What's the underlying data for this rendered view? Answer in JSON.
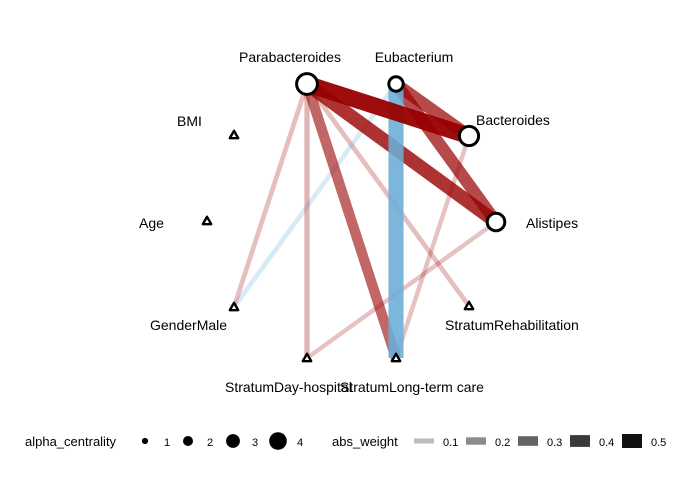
{
  "nodes": [
    {
      "id": "parabacteroides",
      "label": "Parabacteroides",
      "shape": "circle",
      "alpha_centrality": 4
    },
    {
      "id": "eubacterium",
      "label": "Eubacterium",
      "shape": "circle",
      "alpha_centrality": 2
    },
    {
      "id": "bacteroides",
      "label": "Bacteroides",
      "shape": "circle",
      "alpha_centrality": 3.5
    },
    {
      "id": "alistipes",
      "label": "Alistipes",
      "shape": "circle",
      "alpha_centrality": 3
    },
    {
      "id": "bmi",
      "label": "BMI",
      "shape": "triangle"
    },
    {
      "id": "age",
      "label": "Age",
      "shape": "triangle"
    },
    {
      "id": "gendermale",
      "label": "GenderMale",
      "shape": "triangle"
    },
    {
      "id": "stratumdayhospital",
      "label": "StratumDay-hospital",
      "shape": "triangle"
    },
    {
      "id": "stratumlongtermcare",
      "label": "StratumLong-term care",
      "shape": "triangle"
    },
    {
      "id": "stratumrehabilitation",
      "label": "StratumRehabilitation",
      "shape": "triangle"
    }
  ],
  "edges": [
    {
      "from": "parabacteroides",
      "to": "bacteroides",
      "sign": "positive",
      "abs_weight": 0.5
    },
    {
      "from": "parabacteroides",
      "to": "alistipes",
      "sign": "positive",
      "abs_weight": 0.4
    },
    {
      "from": "eubacterium",
      "to": "bacteroides",
      "sign": "positive",
      "abs_weight": 0.35
    },
    {
      "from": "eubacterium",
      "to": "alistipes",
      "sign": "positive",
      "abs_weight": 0.35
    },
    {
      "from": "eubacterium",
      "to": "stratumlongtermcare",
      "sign": "negative",
      "abs_weight": 0.45
    },
    {
      "from": "parabacteroides",
      "to": "stratumlongtermcare",
      "sign": "positive",
      "abs_weight": 0.28
    },
    {
      "from": "parabacteroides",
      "to": "stratumdayhospital",
      "sign": "positive",
      "abs_weight": 0.1
    },
    {
      "from": "parabacteroides",
      "to": "gendermale",
      "sign": "positive",
      "abs_weight": 0.08
    },
    {
      "from": "parabacteroides",
      "to": "stratumrehabilitation",
      "sign": "positive",
      "abs_weight": 0.08
    },
    {
      "from": "eubacterium",
      "to": "gendermale",
      "sign": "negative",
      "abs_weight": 0.08
    },
    {
      "from": "alistipes",
      "to": "stratumdayhospital",
      "sign": "positive",
      "abs_weight": 0.07
    },
    {
      "from": "bacteroides",
      "to": "stratumlongtermcare",
      "sign": "positive",
      "abs_weight": 0.07
    }
  ],
  "colors": {
    "positive": "#990000",
    "negative": "#6baed6",
    "node_stroke": "#000000",
    "node_fill": "#ffffff"
  },
  "legend": {
    "size_title": "alpha_centrality",
    "size_items": [
      {
        "label": "1",
        "value": 1
      },
      {
        "label": "2",
        "value": 2
      },
      {
        "label": "3",
        "value": 3
      },
      {
        "label": "4",
        "value": 4
      }
    ],
    "width_title": "abs_weight",
    "width_items": [
      {
        "label": "0.1",
        "value": 0.1
      },
      {
        "label": "0.2",
        "value": 0.2
      },
      {
        "label": "0.3",
        "value": 0.3
      },
      {
        "label": "0.4",
        "value": 0.4
      },
      {
        "label": "0.5",
        "value": 0.5
      }
    ]
  }
}
